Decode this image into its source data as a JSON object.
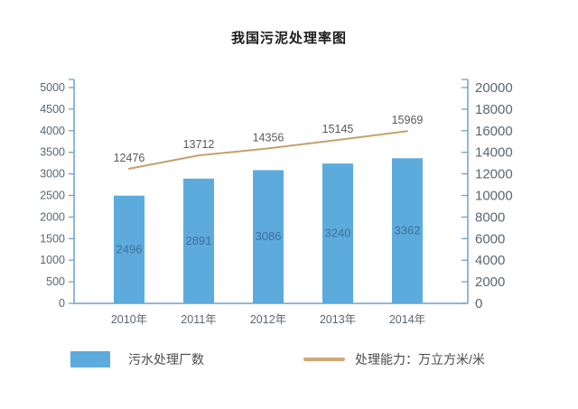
{
  "title": "我国污泥处理率图",
  "colors": {
    "background": "#ffffff",
    "bar": "#5cabdc",
    "bar_label": "#3e6f9d",
    "line": "#c6a06b",
    "legend_line": "#d2a877",
    "axis": "#6fa0cc",
    "axis_text": "#5b6670",
    "data_label": "#595959",
    "title_text": "#1b1b1b",
    "legend_text": "#4b4b4b"
  },
  "legend": [
    {
      "label": "污水处理厂数",
      "type": "bar"
    },
    {
      "label": "处理能力：万立方米/米",
      "type": "line"
    }
  ],
  "chart_data": {
    "type": "bar",
    "title": "我国污泥处理率图",
    "categories": [
      "2010年",
      "2011年",
      "2012年",
      "2013年",
      "2014年"
    ],
    "series": [
      {
        "name": "污水处理厂数",
        "type": "bar",
        "axis": "left",
        "values": [
          2496,
          2891,
          3086,
          3240,
          3362
        ]
      },
      {
        "name": "处理能力：万立方米/米",
        "type": "line",
        "axis": "right",
        "values": [
          12476,
          13712,
          14356,
          15145,
          15969
        ]
      }
    ],
    "left_axis": {
      "min": 0,
      "max": 5000,
      "step": 500
    },
    "right_axis": {
      "min": 0,
      "max": 20000,
      "step": 2000
    },
    "grid": false,
    "legend_position": "bottom"
  }
}
